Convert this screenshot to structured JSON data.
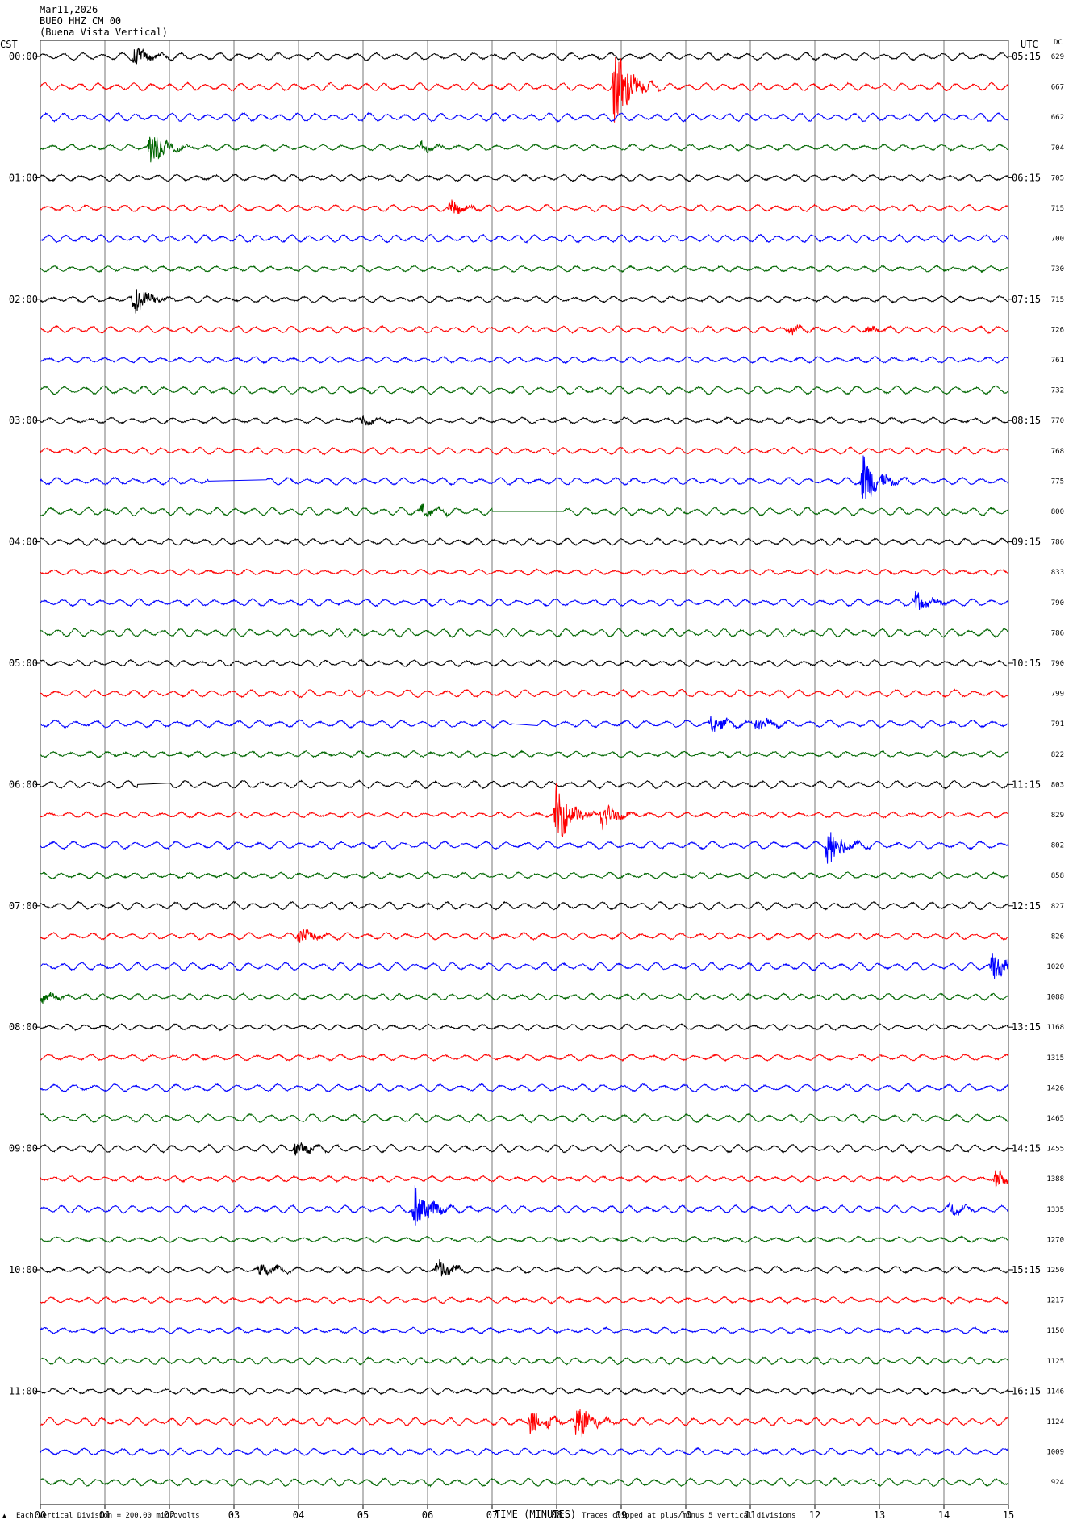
{
  "header": {
    "date": "Mar11,2026",
    "station": "BUEO HHZ CM 00",
    "name": "(Buena Vista Vertical)"
  },
  "axes": {
    "left_label": "CST",
    "right_label": "UTC",
    "dc_label": "DC",
    "xlabel": "TIME (MINUTES)",
    "scale_note": "Each Vertical Division =  200.00 microvolts",
    "clip_note": "Traces clipped at plus/minus 5 vertical divisions"
  },
  "chart_data": {
    "type": "line",
    "title": "",
    "xlabel": "TIME (MINUTES)",
    "x_ticks": [
      "00",
      "01",
      "02",
      "03",
      "04",
      "05",
      "06",
      "07",
      "08",
      "09",
      "10",
      "11",
      "12",
      "13",
      "14",
      "15"
    ],
    "xlim": [
      0,
      15
    ],
    "grid": "vertical lines at each minute",
    "row_minutes": 15,
    "trace_colors": [
      "#000000",
      "#ff0000",
      "#0000ff",
      "#006600"
    ],
    "cst_labels": [
      "00:00",
      "01:00",
      "02:00",
      "03:00",
      "04:00",
      "05:00",
      "06:00",
      "07:00",
      "08:00",
      "09:00",
      "10:00",
      "11:00"
    ],
    "utc_labels": [
      "05:15",
      "06:15",
      "07:15",
      "08:15",
      "09:15",
      "10:15",
      "11:15",
      "12:15",
      "13:15",
      "14:15",
      "15:15",
      "16:15"
    ],
    "dc_offsets": [
      629,
      667,
      662,
      704,
      705,
      715,
      700,
      730,
      715,
      726,
      761,
      732,
      770,
      768,
      775,
      800,
      786,
      833,
      790,
      786,
      790,
      799,
      791,
      822,
      803,
      829,
      802,
      858,
      827,
      826,
      1020,
      1088,
      1168,
      1315,
      1426,
      1465,
      1455,
      1388,
      1335,
      1270,
      1250,
      1217,
      1150,
      1125,
      1146,
      1124,
      1009,
      924
    ],
    "events": [
      {
        "row": 0,
        "minute": 1.45,
        "amplitude": 1.3
      },
      {
        "row": 1,
        "minute": 8.9,
        "amplitude": 6.0
      },
      {
        "row": 3,
        "minute": 1.7,
        "amplitude": 2.6
      },
      {
        "row": 3,
        "minute": 5.9,
        "amplitude": 0.6
      },
      {
        "row": 5,
        "minute": 6.35,
        "amplitude": 1.0
      },
      {
        "row": 8,
        "minute": 1.45,
        "amplitude": 2.0
      },
      {
        "row": 9,
        "minute": 11.6,
        "amplitude": 0.6
      },
      {
        "row": 9,
        "minute": 12.8,
        "amplitude": 0.6
      },
      {
        "row": 12,
        "minute": 5.0,
        "amplitude": 0.6
      },
      {
        "row": 14,
        "minute": 12.75,
        "amplitude": 3.5
      },
      {
        "row": 15,
        "minute": 5.9,
        "amplitude": 0.9
      },
      {
        "row": 18,
        "minute": 13.55,
        "amplitude": 1.5
      },
      {
        "row": 22,
        "minute": 10.4,
        "amplitude": 1.2
      },
      {
        "row": 22,
        "minute": 11.1,
        "amplitude": 1.0
      },
      {
        "row": 25,
        "minute": 8.0,
        "amplitude": 4.0
      },
      {
        "row": 25,
        "minute": 8.7,
        "amplitude": 2.0
      },
      {
        "row": 26,
        "minute": 12.2,
        "amplitude": 2.8
      },
      {
        "row": 29,
        "minute": 4.0,
        "amplitude": 1.2
      },
      {
        "row": 30,
        "minute": 14.75,
        "amplitude": 2.0
      },
      {
        "row": 31,
        "minute": 0.05,
        "amplitude": 0.7
      },
      {
        "row": 36,
        "minute": 3.95,
        "amplitude": 1.0
      },
      {
        "row": 37,
        "minute": 14.8,
        "amplitude": 1.2
      },
      {
        "row": 38,
        "minute": 5.8,
        "amplitude": 3.2
      },
      {
        "row": 38,
        "minute": 14.1,
        "amplitude": 0.8
      },
      {
        "row": 40,
        "minute": 3.4,
        "amplitude": 0.9
      },
      {
        "row": 40,
        "minute": 6.15,
        "amplitude": 1.6
      },
      {
        "row": 45,
        "minute": 7.6,
        "amplitude": 2.0
      },
      {
        "row": 45,
        "minute": 8.3,
        "amplitude": 2.8
      }
    ],
    "gaps": [
      {
        "row": 14,
        "from": 2.6,
        "to": 3.5
      },
      {
        "row": 15,
        "from": 7.0,
        "to": 8.1
      },
      {
        "row": 22,
        "from": 7.3,
        "to": 7.7
      },
      {
        "row": 24,
        "from": 1.5,
        "to": 2.0
      }
    ]
  }
}
